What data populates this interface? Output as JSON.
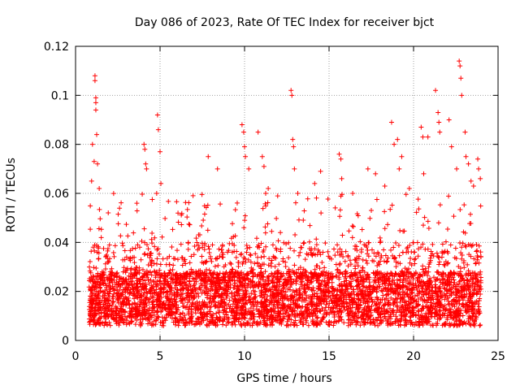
{
  "chart_data": {
    "type": "scatter",
    "title": "Day 086 of 2023, Rate Of TEC Index for receiver bjct",
    "xlabel": "GPS time / hours",
    "ylabel": "ROTI / TECUs",
    "xlim": [
      0,
      25
    ],
    "ylim": [
      0,
      0.12
    ],
    "x_ticks": [
      0,
      5,
      10,
      15,
      20,
      25
    ],
    "x_tick_labels": [
      "0",
      "5",
      "10",
      "15",
      "20",
      "25"
    ],
    "y_ticks": [
      0,
      0.02,
      0.04,
      0.06,
      0.08,
      0.1,
      0.12
    ],
    "y_tick_labels": [
      "0",
      "0.02",
      "0.04",
      "0.06",
      "0.08",
      "0.1",
      "0.12"
    ],
    "grid": true,
    "marker": "plus",
    "marker_color": "#ff0000",
    "series": [
      {
        "x": [
          1.15,
          1.15,
          1.2,
          1.2,
          1.2,
          1.25,
          1.0,
          1.1,
          1.3,
          0.95,
          1.4,
          4.05,
          4.1,
          4.15,
          4.2,
          4.85,
          4.9,
          5.0,
          5.05,
          4.8,
          7.85,
          8.4,
          9.85,
          9.95,
          10.0,
          10.05,
          10.25,
          10.8,
          11.05,
          11.15,
          11.25,
          11.4,
          12.75,
          12.8,
          12.85,
          12.9,
          12.95,
          13.15,
          14.15,
          14.5,
          15.6,
          15.7,
          15.75,
          16.4,
          17.3,
          17.75,
          18.3,
          18.7,
          18.85,
          19.05,
          19.15,
          19.3,
          19.75,
          20.45,
          20.55,
          20.6,
          20.85,
          21.3,
          21.45,
          21.5,
          21.55,
          22.1,
          22.25,
          22.55,
          22.7,
          22.75,
          22.8,
          22.85,
          23.05,
          23.1,
          23.25,
          23.4,
          23.55,
          23.8,
          23.85,
          23.95
        ],
        "y": [
          0.108,
          0.106,
          0.099,
          0.097,
          0.094,
          0.084,
          0.08,
          0.073,
          0.072,
          0.065,
          0.062,
          0.08,
          0.078,
          0.072,
          0.07,
          0.092,
          0.086,
          0.077,
          0.064,
          0.06,
          0.075,
          0.07,
          0.088,
          0.085,
          0.079,
          0.075,
          0.07,
          0.085,
          0.075,
          0.071,
          0.06,
          0.062,
          0.102,
          0.1,
          0.082,
          0.079,
          0.07,
          0.06,
          0.064,
          0.069,
          0.076,
          0.074,
          0.066,
          0.06,
          0.07,
          0.068,
          0.063,
          0.089,
          0.08,
          0.082,
          0.07,
          0.075,
          0.062,
          0.087,
          0.083,
          0.068,
          0.083,
          0.102,
          0.093,
          0.089,
          0.085,
          0.09,
          0.079,
          0.07,
          0.114,
          0.112,
          0.107,
          0.1,
          0.085,
          0.075,
          0.072,
          0.065,
          0.063,
          0.074,
          0.07,
          0.066
        ],
        "bulk": {
          "x_range": [
            0.8,
            24.0
          ],
          "y_range": [
            0.002,
            0.06
          ],
          "typical_y": 0.015
        }
      }
    ]
  }
}
